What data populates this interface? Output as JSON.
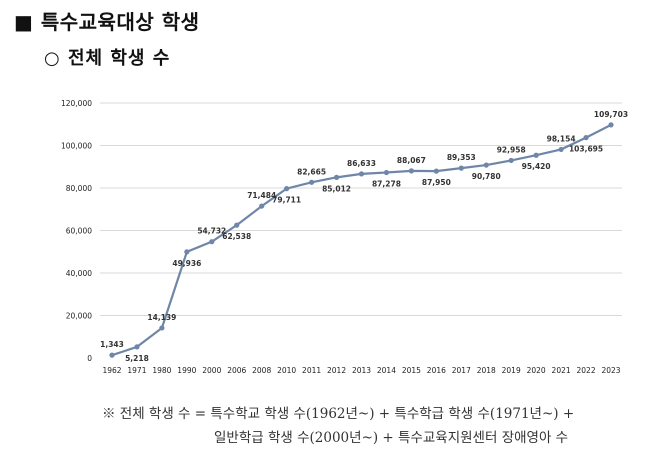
{
  "heading": "■ 특수교육대상 학생",
  "subheading": "○ 전체 학생 수",
  "chart_data": {
    "type": "line",
    "categories": [
      "1962",
      "1971",
      "1980",
      "1990",
      "2000",
      "2006",
      "2008",
      "2010",
      "2011",
      "2012",
      "2013",
      "2014",
      "2015",
      "2016",
      "2017",
      "2018",
      "2019",
      "2020",
      "2021",
      "2022",
      "2023"
    ],
    "values": [
      1343,
      5218,
      14139,
      49936,
      54732,
      62538,
      71484,
      79711,
      82665,
      85012,
      86633,
      87278,
      88067,
      87950,
      89353,
      90780,
      92958,
      95420,
      98154,
      103695,
      109703
    ],
    "data_labels": [
      "1,343",
      "5,218",
      "14,139",
      "49,936",
      "54,732",
      "62,538",
      "71,484",
      "79,711",
      "82,665",
      "85,012",
      "86,633",
      "87,278",
      "88,067",
      "87,950",
      "89,353",
      "90,780",
      "92,958",
      "95,420",
      "98,154",
      "103,695",
      "109,703"
    ],
    "label_positions": [
      "above",
      "below",
      "above",
      "below",
      "above",
      "below",
      "above",
      "below",
      "above",
      "below",
      "above",
      "below",
      "above",
      "below",
      "above",
      "below",
      "above",
      "below",
      "above",
      "below",
      "above"
    ],
    "y_ticks": [
      "0",
      "20,000",
      "40,000",
      "60,000",
      "80,000",
      "100,000",
      "120,000"
    ],
    "y_tick_values": [
      0,
      20000,
      40000,
      60000,
      80000,
      100000,
      120000
    ],
    "ylim": [
      0,
      120000
    ],
    "grid": true,
    "line_color": "#6f86a8",
    "grid_color": "#d9d9d9"
  },
  "notes": {
    "line1": "※ 전체 학생 수 = 특수학교 학생 수(1962년~) + 특수학급 학생 수(1971년~) +",
    "line2": "일반학급 학생 수(2000년~) + 특수교육지원센터 장애영아 수"
  }
}
